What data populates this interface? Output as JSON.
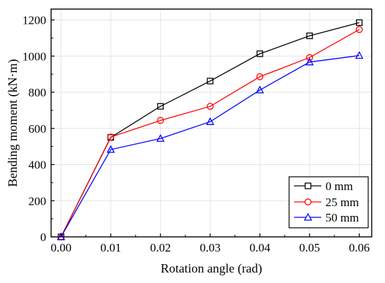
{
  "chart_data": {
    "type": "line",
    "title": "",
    "xlabel": "Rotation angle (rad)",
    "ylabel": "Bending moment (kN·m)",
    "xlim": [
      -0.002,
      0.0625
    ],
    "ylim": [
      0,
      1260
    ],
    "xticks": [
      0.0,
      0.01,
      0.02,
      0.03,
      0.04,
      0.05,
      0.06
    ],
    "xtick_labels": [
      "0.00",
      "0.01",
      "0.02",
      "0.03",
      "0.04",
      "0.05",
      "0.06"
    ],
    "yticks": [
      0,
      200,
      400,
      600,
      800,
      1000,
      1200
    ],
    "ytick_labels": [
      "0",
      "200",
      "400",
      "600",
      "800",
      "1000",
      "1200"
    ],
    "grid": true,
    "legend_position": "bottom-right",
    "x": [
      0.0,
      0.01,
      0.02,
      0.03,
      0.04,
      0.05,
      0.06
    ],
    "series": [
      {
        "name": "0 mm",
        "color": "#000000",
        "marker": "square",
        "values": [
          0,
          550,
          722,
          862,
          1013,
          1112,
          1185
        ]
      },
      {
        "name": "25 mm",
        "color": "#ff0000",
        "marker": "circle",
        "values": [
          0,
          552,
          644,
          722,
          886,
          992,
          1147
        ]
      },
      {
        "name": "50 mm",
        "color": "#0000ff",
        "marker": "triangle",
        "values": [
          0,
          483,
          544,
          637,
          812,
          967,
          1003
        ]
      }
    ]
  }
}
